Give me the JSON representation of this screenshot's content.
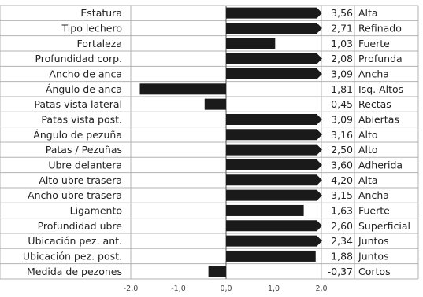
{
  "chart_data": {
    "type": "bar",
    "orientation": "horizontal",
    "categories": [
      "Estatura",
      "Tipo lechero",
      "Fortaleza",
      "Profundidad corp.",
      "Ancho de anca",
      "Ángulo de anca",
      "Patas vista lateral",
      "Patas vista post.",
      "Ángulo de pezuña",
      "Patas / Pezuñas",
      "Ubre delantera",
      "Alto ubre trasera",
      "Ancho ubre trasera",
      "Ligamento",
      "Profundidad ubre",
      "Ubicación pez. ant.",
      "Ubicación pez. post.",
      "Medida de pezones"
    ],
    "values": [
      3.56,
      2.71,
      1.03,
      2.08,
      3.09,
      -1.81,
      -0.45,
      3.09,
      3.16,
      2.5,
      3.6,
      4.2,
      3.15,
      1.63,
      2.6,
      2.34,
      1.88,
      -0.37
    ],
    "value_labels": [
      "3,56",
      "2,71",
      "1,03",
      "2,08",
      "3,09",
      "-1,81",
      "-0,45",
      "3,09",
      "3,16",
      "2,50",
      "3,60",
      "4,20",
      "3,15",
      "1,63",
      "2,60",
      "2,34",
      "1,88",
      "-0,37"
    ],
    "descriptors": [
      "Alta",
      "Refinado",
      "Fuerte",
      "Profunda",
      "Ancha",
      "Isq. Altos",
      "Rectas",
      "Abiertas",
      "Alto",
      "Alto",
      "Adherida",
      "Alta",
      "Ancha",
      "Fuerte",
      "Superficial",
      "Juntos",
      "Juntos",
      "Cortos"
    ],
    "x_ticks": [
      -2.0,
      -1.0,
      0.0,
      1.0,
      2.0
    ],
    "x_tick_labels": [
      "-2,0",
      "-1,0",
      "0,0",
      "1,0",
      "2,0"
    ],
    "xlim": [
      -2.0,
      2.0
    ],
    "clip_max": 2.0,
    "bar_color": "#1a1a1a",
    "grid_color": "#b3b3b3",
    "title": "",
    "xlabel": "",
    "ylabel": ""
  }
}
